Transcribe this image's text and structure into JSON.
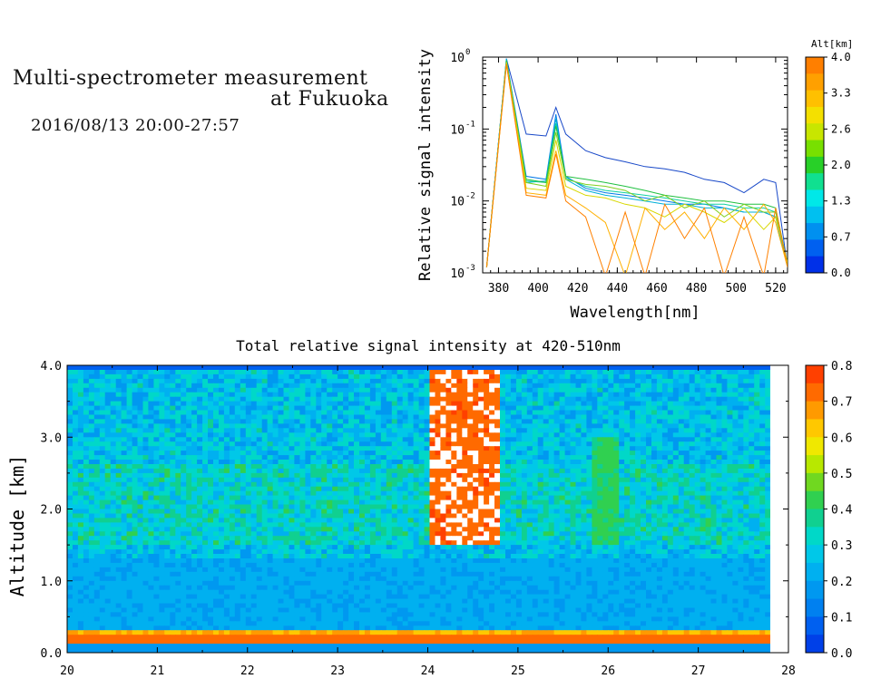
{
  "header": {
    "title_line1": "Multi-spectrometer measurement",
    "title_line2": "at Fukuoka",
    "date_range": "2016/08/13 20:00-27:57"
  },
  "chart_data": [
    {
      "type": "line",
      "xlabel": "Wavelength[nm]",
      "ylabel": "Relative signal intensity",
      "xlim": [
        372,
        526
      ],
      "ylim": [
        0.001,
        1
      ],
      "yscale": "log",
      "xticks": [
        "380",
        "400",
        "420",
        "440",
        "460",
        "480",
        "500",
        "520"
      ],
      "yticks": [
        "10",
        "10",
        "10",
        "10"
      ],
      "yticks_exp": [
        "-3",
        "-2",
        "-1",
        "0"
      ],
      "colorbar": {
        "title": "Alt[km]",
        "ticks": [
          "4.0",
          "3.3",
          "2.6",
          "2.0",
          "1.3",
          "0.7",
          "0.0"
        ],
        "colors": [
          "#ff7f00",
          "#ffa000",
          "#ffc000",
          "#f4e000",
          "#c8e600",
          "#78e000",
          "#28d028",
          "#10e090",
          "#00e8e8",
          "#00c0f0",
          "#0090f0",
          "#0060f0",
          "#0030e8"
        ]
      },
      "x": [
        374,
        384,
        394,
        404,
        409,
        414,
        424,
        434,
        444,
        454,
        464,
        474,
        484,
        494,
        504,
        514,
        520,
        526
      ],
      "series": [
        {
          "color": "#1848c8",
          "values": [
            0.0012,
            0.95,
            0.085,
            0.08,
            0.2,
            0.085,
            0.05,
            0.04,
            0.035,
            0.03,
            0.028,
            0.025,
            0.02,
            0.018,
            0.013,
            0.02,
            0.018,
            0.0012
          ]
        },
        {
          "color": "#0078e8",
          "values": [
            0.0012,
            0.95,
            0.022,
            0.02,
            0.16,
            0.022,
            0.015,
            0.013,
            0.012,
            0.011,
            0.01,
            0.009,
            0.009,
            0.008,
            0.007,
            0.007,
            0.006,
            0.0012
          ]
        },
        {
          "color": "#00b0d8",
          "values": [
            0.0012,
            0.95,
            0.018,
            0.019,
            0.14,
            0.02,
            0.014,
            0.012,
            0.011,
            0.01,
            0.009,
            0.009,
            0.008,
            0.008,
            0.007,
            0.007,
            0.006,
            0.0012
          ]
        },
        {
          "color": "#10d0a0",
          "values": [
            0.0012,
            0.9,
            0.019,
            0.018,
            0.12,
            0.021,
            0.016,
            0.014,
            0.013,
            0.012,
            0.011,
            0.01,
            0.009,
            0.009,
            0.008,
            0.008,
            0.007,
            0.0013
          ]
        },
        {
          "color": "#20c040",
          "values": [
            0.0012,
            0.9,
            0.02,
            0.018,
            0.11,
            0.022,
            0.02,
            0.018,
            0.016,
            0.014,
            0.012,
            0.011,
            0.01,
            0.01,
            0.009,
            0.009,
            0.008,
            0.0013
          ]
        },
        {
          "color": "#80d020",
          "values": [
            0.0012,
            0.85,
            0.018,
            0.016,
            0.09,
            0.02,
            0.017,
            0.016,
            0.014,
            0.01,
            0.012,
            0.008,
            0.01,
            0.006,
            0.009,
            0.007,
            0.007,
            0.0013
          ]
        },
        {
          "color": "#d8d800",
          "values": [
            0.0012,
            0.85,
            0.015,
            0.014,
            0.07,
            0.016,
            0.012,
            0.011,
            0.009,
            0.008,
            0.006,
            0.009,
            0.007,
            0.005,
            0.008,
            0.004,
            0.006,
            0.0014
          ]
        },
        {
          "color": "#ffb000",
          "values": [
            0.0012,
            0.8,
            0.013,
            0.012,
            0.05,
            0.012,
            0.008,
            0.005,
            0.0009,
            0.008,
            0.004,
            0.007,
            0.003,
            0.008,
            0.004,
            0.009,
            0.005,
            0.0012
          ]
        },
        {
          "color": "#ff8000",
          "values": [
            0.0012,
            0.8,
            0.012,
            0.011,
            0.045,
            0.01,
            0.006,
            0.0009,
            0.007,
            0.0009,
            0.009,
            0.003,
            0.008,
            0.0009,
            0.006,
            0.0009,
            0.008,
            0.0012
          ]
        }
      ]
    },
    {
      "type": "heatmap",
      "title": "Total relative signal intensity at 420-510nm",
      "ylabel": "Altitude [km]",
      "xlim": [
        20,
        28
      ],
      "ylim": [
        0,
        4
      ],
      "xticks": [
        "20",
        "21",
        "22",
        "23",
        "24",
        "25",
        "26",
        "27",
        "28"
      ],
      "yticks": [
        "0.0",
        "1.0",
        "2.0",
        "3.0",
        "4.0"
      ],
      "colorbar": {
        "ticks": [
          "0.8",
          "0.7",
          "0.6",
          "0.5",
          "0.4",
          "0.3",
          "0.2",
          "0.1",
          "0.0"
        ],
        "range": [
          0,
          0.8
        ],
        "colors": [
          "#ff4000",
          "#ff6a00",
          "#ff9a00",
          "#ffc800",
          "#f0e800",
          "#b8e800",
          "#70d820",
          "#30d050",
          "#10d090",
          "#00d8c8",
          "#00c8e8",
          "#00b0f0",
          "#0098f0",
          "#0080f0",
          "#0060f0",
          "#0040e8"
        ]
      },
      "data_end_hour": 27.8,
      "features": [
        {
          "description": "strong aerosol/cloud layer 1.5-4.0 km around 24.0-24.8 h",
          "x": [
            24.0,
            24.8
          ],
          "y": [
            1.5,
            4.0
          ],
          "value": 0.8
        },
        {
          "description": "moderate layer 1.5-3.0 km around 25.8-26.1 h",
          "x": [
            25.8,
            26.1
          ],
          "y": [
            1.5,
            3.0
          ],
          "value": 0.45
        },
        {
          "description": "surface layer 0.1-0.3 km",
          "x": [
            20,
            27.8
          ],
          "y": [
            0.1,
            0.3
          ],
          "value": 0.7
        }
      ]
    }
  ]
}
